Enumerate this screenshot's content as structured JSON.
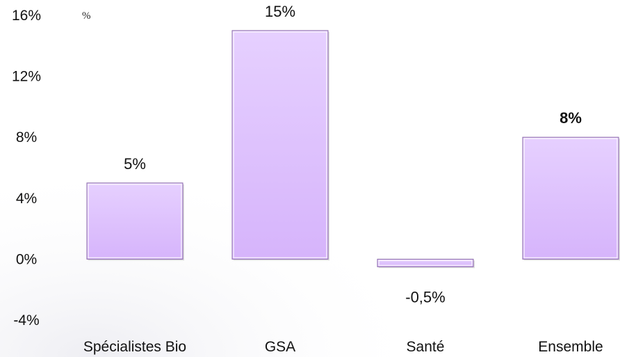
{
  "chart_data": {
    "type": "bar",
    "unit_label": "%",
    "categories": [
      "Spécialistes Bio",
      "GSA",
      "Santé",
      "Ensemble"
    ],
    "values": [
      5,
      15,
      -0.5,
      8
    ],
    "data_labels": [
      "5%",
      "15%",
      "-0,5%",
      "8%"
    ],
    "bold_labels": [
      false,
      false,
      false,
      true
    ],
    "ylim": [
      -4,
      16
    ],
    "yticks": [
      16,
      12,
      8,
      4,
      0,
      -4
    ],
    "ytick_labels": [
      "16%",
      "12%",
      "8%",
      "4%",
      "0%",
      "-4%"
    ],
    "grid": false,
    "legend": "none",
    "colors": {
      "bar_fill": "#dcbcff",
      "bar_fill_light": "#ead6ff",
      "bar_stroke": "#8a6aa8",
      "background_wash": "#f2f2f6"
    }
  }
}
